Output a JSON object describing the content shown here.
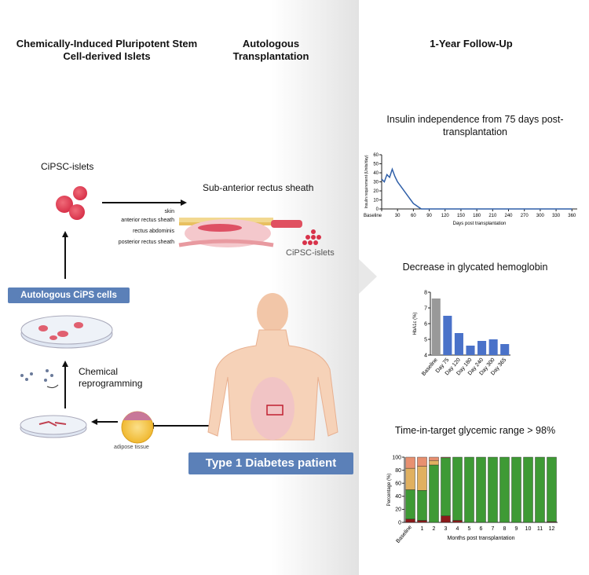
{
  "headers": [
    "Chemically-Induced Pluripotent Stem Cell-derived Islets",
    "Autologous Transplantation",
    "1-Year Follow-Up"
  ],
  "labels": {
    "cipsc_islets": "CiPSC-islets",
    "sub_anterior": "Sub-anterior rectus sheath",
    "skin": "skin",
    "anterior": "anterior rectus sheath",
    "rectus": "rectus abdominis",
    "posterior": "posterior rectus sheath",
    "cipsc_islets_2": "CiPSC-islets",
    "autologous_cells": "Autologous CiPS cells",
    "chemical": "Chemical reprogramming",
    "adipose": "adipose tissue",
    "patient": "Type 1 Diabetes patient"
  },
  "chart_data": [
    {
      "type": "line",
      "title": "Insulin independence from 75 days post-transplantation",
      "x_label": "Days post transplantation",
      "y_label": "Insulin requirement (Units/day)",
      "color": "#2f5fa8",
      "x": [
        0,
        5,
        10,
        15,
        20,
        25,
        30,
        35,
        40,
        45,
        50,
        55,
        60,
        65,
        70,
        75,
        90,
        120,
        150,
        180,
        210,
        240,
        270,
        300,
        330,
        360
      ],
      "y": [
        33,
        30,
        38,
        35,
        44,
        36,
        30,
        26,
        22,
        18,
        14,
        10,
        6,
        4,
        2,
        0,
        0,
        0,
        0,
        0,
        0,
        0,
        0,
        0,
        0,
        0
      ],
      "xlim": [
        0,
        370
      ],
      "ylim": [
        0,
        60
      ],
      "xticks": [
        {
          "value": 0,
          "label": "Baseline"
        },
        30,
        60,
        90,
        120,
        150,
        180,
        210,
        240,
        270,
        300,
        330,
        360
      ],
      "yticks": [
        0,
        10,
        20,
        30,
        40,
        50,
        60
      ]
    },
    {
      "type": "bar",
      "title": "Decrease in glycated hemoglobin",
      "y_label": "HbA1c (%)",
      "categories": [
        "Baseline",
        "Day 75",
        "Day 120",
        "Day 180",
        "Day 240",
        "Day 300",
        "Day 365"
      ],
      "values": [
        7.6,
        6.5,
        5.4,
        4.6,
        4.9,
        5.0,
        4.7
      ],
      "colors": [
        "#999999",
        "#4a72c9",
        "#4a72c9",
        "#4a72c9",
        "#4a72c9",
        "#4a72c9",
        "#4a72c9"
      ],
      "ylim": [
        4,
        8
      ],
      "yticks": [
        4,
        5,
        6,
        7,
        8
      ]
    },
    {
      "type": "stacked_bar",
      "title": "Time-in-target glycemic range > 98%",
      "x_label": "Months post transplantation",
      "y_label": "Percentage (%)",
      "categories": [
        "Baseline",
        "1",
        "2",
        "3",
        "4",
        "5",
        "6",
        "7",
        "8",
        "9",
        "10",
        "11",
        "12"
      ],
      "series": [
        {
          "color": "#8b1a1a",
          "values": [
            5,
            3,
            0,
            10,
            3,
            0,
            0,
            0,
            0,
            0,
            0,
            0,
            1
          ]
        },
        {
          "color": "#3e9a35",
          "values": [
            45,
            46,
            88,
            89,
            97,
            100,
            100,
            100,
            100,
            100,
            100,
            100,
            99
          ]
        },
        {
          "color": "#e0b060",
          "values": [
            33,
            37,
            7,
            0,
            0,
            0,
            0,
            0,
            0,
            0,
            0,
            0,
            0
          ]
        },
        {
          "color": "#e89070",
          "values": [
            17,
            14,
            5,
            1,
            0,
            0,
            0,
            0,
            0,
            0,
            0,
            0,
            0
          ]
        }
      ],
      "ylim": [
        0,
        100
      ],
      "yticks": [
        0,
        20,
        40,
        60,
        80,
        100
      ]
    }
  ]
}
